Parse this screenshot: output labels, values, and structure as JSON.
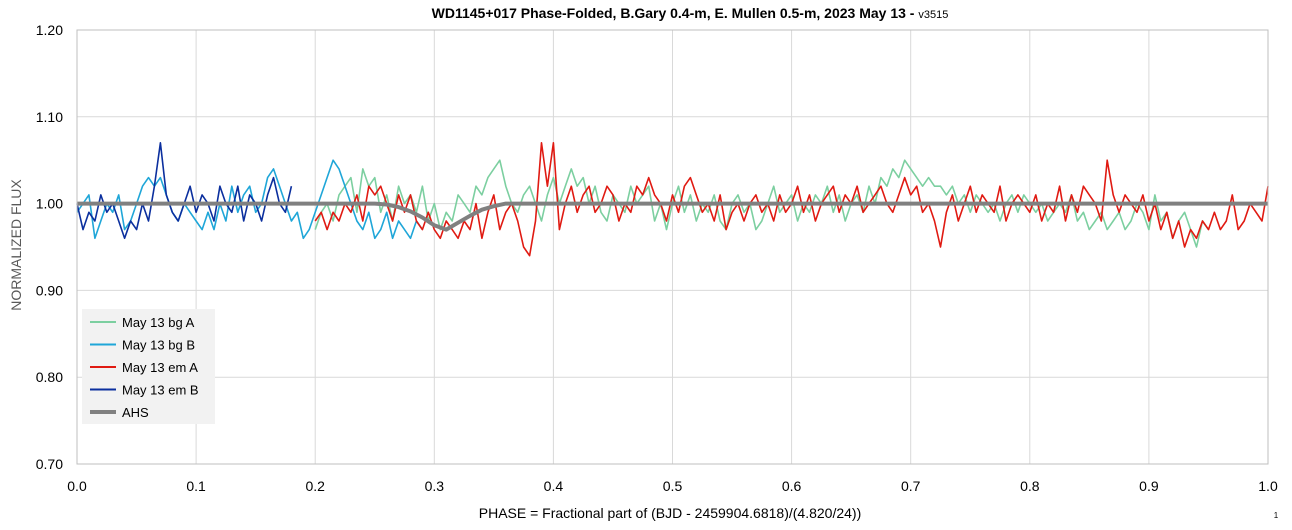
{
  "chart_data": {
    "type": "line",
    "title": "WD1145+017 Phase-Folded, B.Gary 0.4-m, E. Mullen 0.5-m, 2023 May 13 - ",
    "title_suffix": "v3515",
    "xlabel": "PHASE = Fractional part of (BJD - 2459904.6818)/(4.820/24))",
    "ylabel": "NORMALIZED FLUX",
    "corner_note": "1",
    "xlim": [
      0.0,
      1.0
    ],
    "ylim": [
      0.7,
      1.2
    ],
    "x_ticks": [
      "0.0",
      "0.1",
      "0.2",
      "0.3",
      "0.4",
      "0.5",
      "0.6",
      "0.7",
      "0.8",
      "0.9",
      "1.0"
    ],
    "y_ticks": [
      "0.70",
      "0.80",
      "0.90",
      "1.00",
      "1.10",
      "1.20"
    ],
    "grid": true,
    "legend_position": "bottom-left",
    "series": [
      {
        "name": "May 13 bg A",
        "color": "#7ccfa0",
        "x": [
          0.2,
          0.205,
          0.21,
          0.215,
          0.22,
          0.225,
          0.23,
          0.235,
          0.24,
          0.245,
          0.25,
          0.255,
          0.26,
          0.265,
          0.27,
          0.275,
          0.28,
          0.285,
          0.29,
          0.295,
          0.3,
          0.305,
          0.31,
          0.315,
          0.32,
          0.325,
          0.33,
          0.335,
          0.34,
          0.345,
          0.35,
          0.355,
          0.36,
          0.365,
          0.37,
          0.375,
          0.38,
          0.385,
          0.39,
          0.395,
          0.4,
          0.405,
          0.41,
          0.415,
          0.42,
          0.425,
          0.43,
          0.435,
          0.44,
          0.445,
          0.45,
          0.455,
          0.46,
          0.465,
          0.47,
          0.475,
          0.48,
          0.485,
          0.49,
          0.495,
          0.5,
          0.505,
          0.51,
          0.515,
          0.52,
          0.525,
          0.53,
          0.535,
          0.54,
          0.545,
          0.55,
          0.555,
          0.56,
          0.565,
          0.57,
          0.575,
          0.58,
          0.585,
          0.59,
          0.595,
          0.6,
          0.605,
          0.61,
          0.615,
          0.62,
          0.625,
          0.63,
          0.635,
          0.64,
          0.645,
          0.65,
          0.655,
          0.66,
          0.665,
          0.67,
          0.675,
          0.68,
          0.685,
          0.69,
          0.695,
          0.7,
          0.705,
          0.71,
          0.715,
          0.72,
          0.725,
          0.73,
          0.735,
          0.74,
          0.745,
          0.75,
          0.755,
          0.76,
          0.765,
          0.77,
          0.775,
          0.78,
          0.785,
          0.79,
          0.795,
          0.8,
          0.805,
          0.81,
          0.815,
          0.82,
          0.825,
          0.83,
          0.835,
          0.84,
          0.845,
          0.85,
          0.855,
          0.86,
          0.865,
          0.87,
          0.875,
          0.88,
          0.885,
          0.89,
          0.895,
          0.9,
          0.905,
          0.91,
          0.915,
          0.92,
          0.925,
          0.93,
          0.935,
          0.94,
          0.945,
          0.95
        ],
        "y": [
          0.97,
          0.99,
          1.0,
          0.98,
          1.01,
          1.02,
          1.03,
          0.99,
          1.04,
          1.02,
          1.03,
          0.99,
          1.01,
          0.98,
          1.02,
          1.0,
          1.01,
          0.99,
          1.02,
          0.98,
          1.0,
          0.97,
          0.99,
          0.98,
          1.01,
          1.0,
          0.99,
          1.02,
          1.01,
          1.03,
          1.04,
          1.05,
          1.02,
          1.0,
          0.99,
          1.01,
          1.02,
          1.0,
          0.98,
          1.01,
          1.03,
          1.0,
          1.02,
          1.04,
          1.02,
          1.03,
          1.0,
          1.02,
          0.99,
          0.98,
          1.01,
          1.0,
          0.99,
          1.02,
          1.0,
          1.01,
          1.02,
          0.98,
          1.0,
          0.97,
          1.0,
          1.02,
          0.99,
          1.01,
          0.98,
          1.0,
          0.99,
          1.01,
          0.98,
          0.97,
          1.0,
          1.01,
          0.99,
          1.0,
          0.97,
          0.98,
          1.0,
          1.02,
          0.99,
          1.0,
          1.01,
          0.98,
          1.0,
          0.99,
          1.01,
          1.0,
          1.02,
          0.99,
          1.01,
          0.98,
          1.0,
          1.01,
          0.99,
          1.02,
          1.0,
          1.03,
          1.02,
          1.04,
          1.03,
          1.05,
          1.04,
          1.03,
          1.02,
          1.03,
          1.02,
          1.02,
          1.01,
          1.02,
          1.0,
          1.01,
          0.99,
          1.01,
          1.0,
          0.99,
          1.0,
          0.98,
          1.0,
          1.01,
          0.99,
          1.01,
          1.0,
          0.99,
          1.0,
          0.98,
          0.99,
          1.0,
          0.99,
          1.01,
          0.98,
          0.99,
          0.97,
          0.98,
          0.99,
          0.97,
          0.98,
          0.99,
          0.97,
          0.98,
          1.0,
          0.99,
          0.97,
          1.01,
          0.98,
          0.99,
          0.96,
          0.98,
          0.99,
          0.97,
          0.95,
          0.98,
          0.97
        ]
      },
      {
        "name": "May 13 bg B",
        "color": "#1fa6d8",
        "x": [
          0.0,
          0.005,
          0.01,
          0.015,
          0.02,
          0.025,
          0.03,
          0.035,
          0.04,
          0.045,
          0.05,
          0.055,
          0.06,
          0.065,
          0.07,
          0.075,
          0.08,
          0.085,
          0.09,
          0.095,
          0.1,
          0.105,
          0.11,
          0.115,
          0.12,
          0.125,
          0.13,
          0.135,
          0.14,
          0.145,
          0.15,
          0.155,
          0.16,
          0.165,
          0.17,
          0.175,
          0.18,
          0.185,
          0.19,
          0.195,
          0.2,
          0.205,
          0.21,
          0.215,
          0.22,
          0.225,
          0.23,
          0.235,
          0.24,
          0.245,
          0.25,
          0.255,
          0.26,
          0.265,
          0.27,
          0.275,
          0.28,
          0.285,
          0.29
        ],
        "y": [
          0.99,
          1.0,
          1.01,
          0.96,
          0.98,
          1.0,
          0.99,
          1.01,
          0.97,
          0.98,
          1.0,
          1.02,
          1.03,
          1.02,
          1.03,
          1.01,
          0.99,
          0.98,
          1.0,
          0.99,
          0.98,
          0.97,
          0.99,
          0.97,
          1.0,
          0.98,
          1.02,
          0.99,
          1.01,
          1.02,
          0.99,
          1.0,
          1.03,
          1.04,
          1.02,
          1.0,
          0.98,
          0.99,
          0.96,
          0.97,
          0.99,
          1.01,
          1.03,
          1.05,
          1.04,
          1.02,
          1.0,
          0.98,
          0.97,
          0.99,
          0.96,
          0.97,
          0.99,
          0.96,
          0.98,
          0.97,
          0.96,
          0.98,
          0.97
        ]
      },
      {
        "name": "May 13 em A",
        "color": "#e01a12",
        "x": [
          0.2,
          0.205,
          0.21,
          0.215,
          0.22,
          0.225,
          0.23,
          0.235,
          0.24,
          0.245,
          0.25,
          0.255,
          0.26,
          0.265,
          0.27,
          0.275,
          0.28,
          0.285,
          0.29,
          0.295,
          0.3,
          0.305,
          0.31,
          0.315,
          0.32,
          0.325,
          0.33,
          0.335,
          0.34,
          0.345,
          0.35,
          0.355,
          0.36,
          0.365,
          0.37,
          0.375,
          0.38,
          0.385,
          0.39,
          0.395,
          0.4,
          0.405,
          0.41,
          0.415,
          0.42,
          0.425,
          0.43,
          0.435,
          0.44,
          0.445,
          0.45,
          0.455,
          0.46,
          0.465,
          0.47,
          0.475,
          0.48,
          0.485,
          0.49,
          0.495,
          0.5,
          0.505,
          0.51,
          0.515,
          0.52,
          0.525,
          0.53,
          0.535,
          0.54,
          0.545,
          0.55,
          0.555,
          0.56,
          0.565,
          0.57,
          0.575,
          0.58,
          0.585,
          0.59,
          0.595,
          0.6,
          0.605,
          0.61,
          0.615,
          0.62,
          0.625,
          0.63,
          0.635,
          0.64,
          0.645,
          0.65,
          0.655,
          0.66,
          0.665,
          0.67,
          0.675,
          0.68,
          0.685,
          0.69,
          0.695,
          0.7,
          0.705,
          0.71,
          0.715,
          0.72,
          0.725,
          0.73,
          0.735,
          0.74,
          0.745,
          0.75,
          0.755,
          0.76,
          0.765,
          0.77,
          0.775,
          0.78,
          0.785,
          0.79,
          0.795,
          0.8,
          0.805,
          0.81,
          0.815,
          0.82,
          0.825,
          0.83,
          0.835,
          0.84,
          0.845,
          0.85,
          0.855,
          0.86,
          0.865,
          0.87,
          0.875,
          0.88,
          0.885,
          0.89,
          0.895,
          0.9,
          0.905,
          0.91,
          0.915,
          0.92,
          0.925,
          0.93,
          0.935,
          0.94,
          0.945,
          0.95,
          0.955,
          0.96,
          0.965,
          0.97,
          0.975,
          0.98,
          0.985,
          0.99,
          0.995,
          1.0
        ],
        "y": [
          0.98,
          0.99,
          0.97,
          0.99,
          0.98,
          1.0,
          0.99,
          1.01,
          0.98,
          1.02,
          1.01,
          1.02,
          1.0,
          0.98,
          1.01,
          0.99,
          1.01,
          0.98,
          0.97,
          0.99,
          0.97,
          0.96,
          0.98,
          0.97,
          0.96,
          0.98,
          0.97,
          1.0,
          0.96,
          0.99,
          1.01,
          0.97,
          0.99,
          1.0,
          0.98,
          0.95,
          0.94,
          0.98,
          1.07,
          1.02,
          1.07,
          0.97,
          1.0,
          1.02,
          0.99,
          1.01,
          1.02,
          0.99,
          1.0,
          1.02,
          1.01,
          0.98,
          1.0,
          0.99,
          1.02,
          1.01,
          1.03,
          1.01,
          1.0,
          0.98,
          1.01,
          0.99,
          1.02,
          1.03,
          1.01,
          0.99,
          1.0,
          0.98,
          1.01,
          0.97,
          0.99,
          1.0,
          0.98,
          1.0,
          1.01,
          0.99,
          1.0,
          0.98,
          1.01,
          0.99,
          1.0,
          1.02,
          0.99,
          1.01,
          0.98,
          1.0,
          1.01,
          1.02,
          0.99,
          1.01,
          1.0,
          1.02,
          0.99,
          1.0,
          1.01,
          1.02,
          1.0,
          0.99,
          1.01,
          1.03,
          1.01,
          1.02,
          0.99,
          1.0,
          0.98,
          0.95,
          0.99,
          1.01,
          0.98,
          1.0,
          1.02,
          0.99,
          1.01,
          1.0,
          0.99,
          1.02,
          0.98,
          1.0,
          1.01,
          1.0,
          0.99,
          1.01,
          0.98,
          1.0,
          0.99,
          1.02,
          0.98,
          1.01,
          0.99,
          1.02,
          1.01,
          1.0,
          0.98,
          1.05,
          1.01,
          0.99,
          1.01,
          1.0,
          0.99,
          1.01,
          0.98,
          1.0,
          0.97,
          0.99,
          0.96,
          0.98,
          0.95,
          0.97,
          0.96,
          0.98,
          0.97,
          0.99,
          0.97,
          0.98,
          1.01,
          0.97,
          0.98,
          1.0,
          0.99,
          0.98,
          1.02
        ]
      },
      {
        "name": "May 13 em B",
        "color": "#0b2f9e",
        "x": [
          0.0,
          0.005,
          0.01,
          0.015,
          0.02,
          0.025,
          0.03,
          0.035,
          0.04,
          0.045,
          0.05,
          0.055,
          0.06,
          0.065,
          0.07,
          0.075,
          0.08,
          0.085,
          0.09,
          0.095,
          0.1,
          0.105,
          0.11,
          0.115,
          0.12,
          0.125,
          0.13,
          0.135,
          0.14,
          0.145,
          0.15,
          0.155,
          0.16,
          0.165,
          0.17,
          0.175,
          0.18
        ],
        "y": [
          1.0,
          0.97,
          0.99,
          0.98,
          1.01,
          0.99,
          1.0,
          0.98,
          0.96,
          0.98,
          0.97,
          1.0,
          0.98,
          1.02,
          1.07,
          1.01,
          0.99,
          0.98,
          1.0,
          1.02,
          0.99,
          1.01,
          1.0,
          0.98,
          1.02,
          1.0,
          0.99,
          1.02,
          0.98,
          1.01,
          1.0,
          0.98,
          1.01,
          1.03,
          1.0,
          0.99,
          1.02
        ]
      },
      {
        "name": "AHS",
        "color": "#808080",
        "x": [
          0.0,
          0.1,
          0.2,
          0.25,
          0.26,
          0.27,
          0.28,
          0.29,
          0.3,
          0.31,
          0.32,
          0.33,
          0.34,
          0.35,
          0.36,
          0.37,
          0.4,
          0.5,
          0.6,
          0.7,
          0.8,
          0.9,
          1.0
        ],
        "y": [
          1.0,
          1.0,
          1.0,
          1.0,
          0.999,
          0.996,
          0.991,
          0.984,
          0.975,
          0.97,
          0.978,
          0.986,
          0.993,
          0.997,
          1.0,
          1.0,
          1.0,
          1.0,
          1.0,
          1.0,
          1.0,
          1.0,
          1.0
        ]
      }
    ]
  }
}
